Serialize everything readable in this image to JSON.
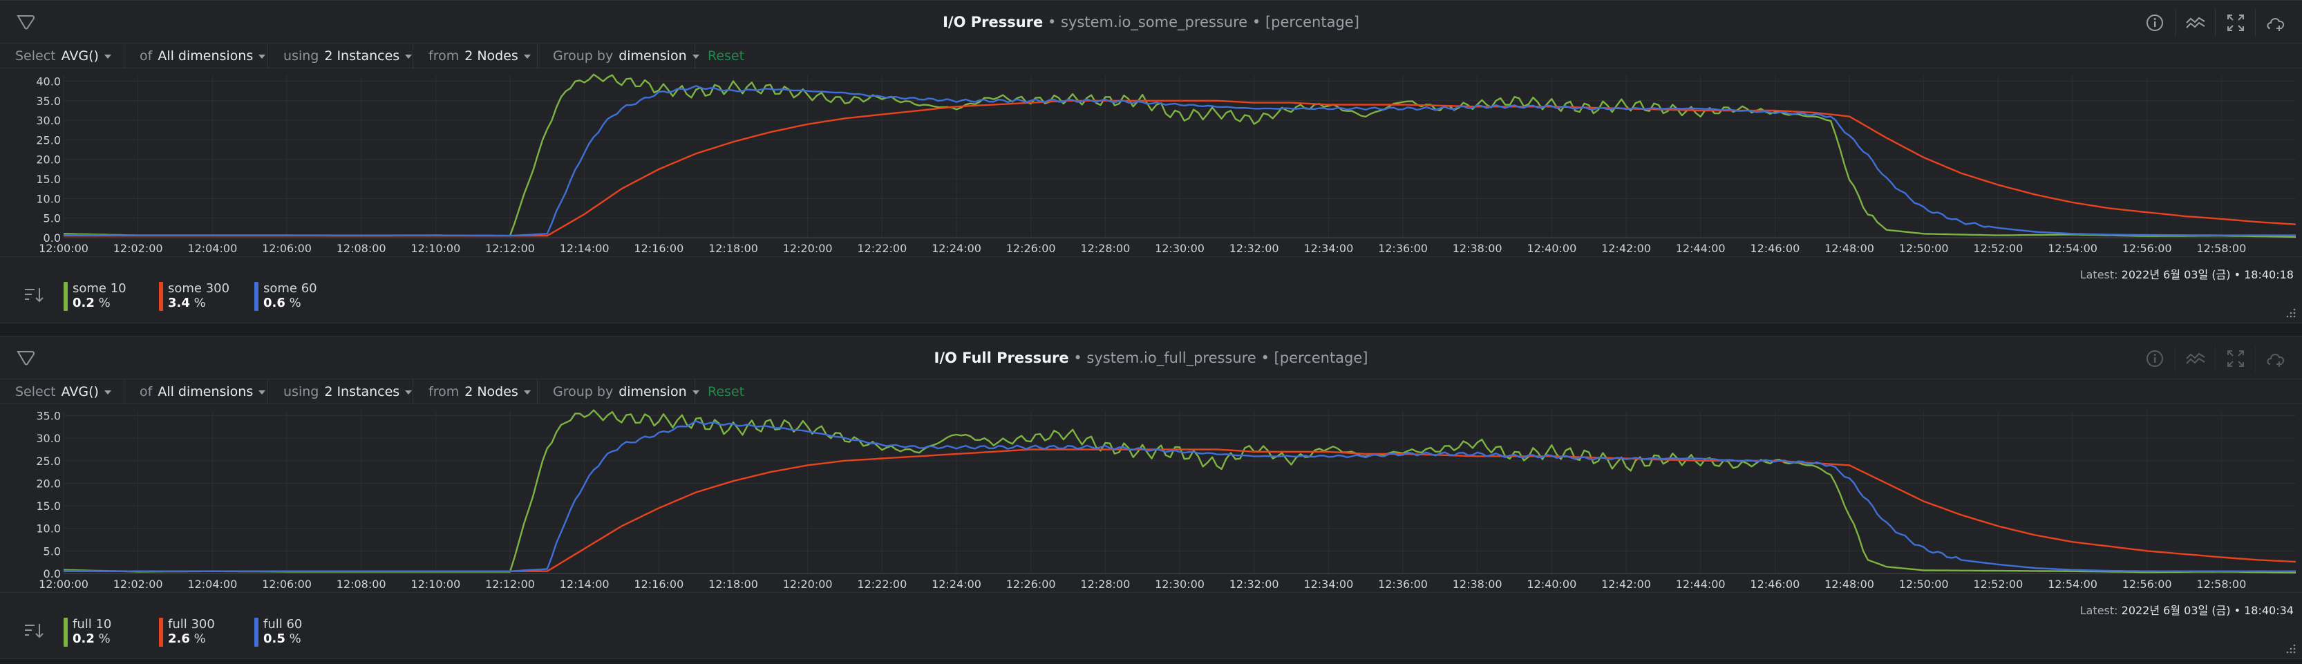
{
  "colors": {
    "green": "#7cb342",
    "red": "#e8431f",
    "blue": "#3f6fd8",
    "grid": "#2d2f33",
    "axis_text": "#d0d3d6"
  },
  "panels": [
    {
      "title": "I/O Pressure",
      "separator": "•",
      "context": "system.io_some_pressure",
      "unit": "[percentage]",
      "filters": {
        "select_label": "Select",
        "select_value": "AVG()",
        "of_label": "of",
        "of_value": "All dimensions",
        "using_label": "using",
        "using_value": "2 Instances",
        "from_label": "from",
        "from_value": "2 Nodes",
        "group_label": "Group by",
        "group_value": "dimension",
        "reset": "Reset"
      },
      "legend": [
        {
          "name": "some 10",
          "value": "0.2",
          "unit": "%",
          "color": "#7cb342"
        },
        {
          "name": "some 300",
          "value": "3.4",
          "unit": "%",
          "color": "#e8431f"
        },
        {
          "name": "some 60",
          "value": "0.6",
          "unit": "%",
          "color": "#3f6fd8"
        }
      ],
      "latest_label": "Latest:",
      "latest_value": "2022년 6월 03일 (금) • 18:40:18"
    },
    {
      "title": "I/O Full Pressure",
      "separator": "•",
      "context": "system.io_full_pressure",
      "unit": "[percentage]",
      "filters": {
        "select_label": "Select",
        "select_value": "AVG()",
        "of_label": "of",
        "of_value": "All dimensions",
        "using_label": "using",
        "using_value": "2 Instances",
        "from_label": "from",
        "from_value": "2 Nodes",
        "group_label": "Group by",
        "group_value": "dimension",
        "reset": "Reset"
      },
      "legend": [
        {
          "name": "full 10",
          "value": "0.2",
          "unit": "%",
          "color": "#7cb342"
        },
        {
          "name": "full 300",
          "value": "2.6",
          "unit": "%",
          "color": "#e8431f"
        },
        {
          "name": "full 60",
          "value": "0.5",
          "unit": "%",
          "color": "#3f6fd8"
        }
      ],
      "latest_label": "Latest:",
      "latest_value": "2022년 6월 03일 (금) • 18:40:34"
    }
  ],
  "chart_data": [
    {
      "type": "line",
      "title": "I/O Pressure",
      "xlabel": "",
      "ylabel": "",
      "x_ticks": [
        "12:00:00",
        "12:02:00",
        "12:04:00",
        "12:06:00",
        "12:08:00",
        "12:10:00",
        "12:12:00",
        "12:14:00",
        "12:16:00",
        "12:18:00",
        "12:20:00",
        "12:22:00",
        "12:24:00",
        "12:26:00",
        "12:28:00",
        "12:30:00",
        "12:32:00",
        "12:34:00",
        "12:36:00",
        "12:38:00",
        "12:40:00",
        "12:42:00",
        "12:44:00",
        "12:46:00",
        "12:48:00",
        "12:50:00",
        "12:52:00",
        "12:54:00",
        "12:56:00",
        "12:58:00"
      ],
      "y_ticks": [
        0,
        5,
        10,
        15,
        20,
        25,
        30,
        35,
        40
      ],
      "xlim_minutes": [
        0,
        60
      ],
      "ylim": [
        0,
        41.5
      ],
      "grid": true,
      "series": [
        {
          "name": "some 10",
          "color": "#7cb342",
          "x_minutes": [
            0,
            2,
            4,
            6,
            8,
            10,
            12,
            13,
            13.5,
            14,
            14.5,
            15,
            15.5,
            16,
            17,
            18,
            19,
            20,
            21,
            22,
            23,
            24,
            25,
            26,
            27,
            28,
            29,
            30,
            31,
            32,
            33,
            34,
            35,
            36,
            37,
            38,
            39,
            40,
            41,
            42,
            43,
            44,
            45,
            46,
            47,
            47.5,
            48,
            48.5,
            49,
            50,
            52,
            54,
            56,
            58,
            60
          ],
          "values": [
            1,
            0.6,
            0.6,
            0.6,
            0.5,
            0.6,
            0.5,
            28,
            38,
            40.5,
            41,
            40,
            39.5,
            38,
            37,
            38.5,
            38,
            36.5,
            35,
            36,
            34,
            33,
            36,
            35,
            35.5,
            35,
            35,
            31,
            32,
            30,
            33,
            34,
            31,
            35,
            33,
            34,
            35,
            34,
            33,
            34,
            33,
            32,
            33,
            32,
            31,
            30,
            15,
            6,
            2,
            1,
            0.6,
            0.8,
            0.4,
            0.5,
            0.2
          ]
        },
        {
          "name": "some 300",
          "color": "#e8431f",
          "x_minutes": [
            0,
            2,
            4,
            6,
            8,
            10,
            12,
            13,
            14,
            15,
            16,
            17,
            18,
            19,
            20,
            21,
            22,
            23,
            24,
            25,
            26,
            27,
            28,
            29,
            30,
            31,
            32,
            33,
            34,
            35,
            36,
            38,
            40,
            42,
            44,
            46,
            47,
            48,
            49,
            50,
            51,
            52,
            53,
            54,
            55,
            56,
            57,
            58,
            59,
            60
          ],
          "values": [
            0.5,
            0.5,
            0.5,
            0.5,
            0.5,
            0.5,
            0.5,
            0.5,
            6,
            12.5,
            17.5,
            21.5,
            24.5,
            27,
            29,
            30.5,
            31.5,
            32.5,
            33.5,
            34,
            34.5,
            35,
            35,
            35,
            35,
            35,
            34.5,
            34.5,
            34,
            34,
            34,
            33.5,
            33.5,
            33,
            32.5,
            32.5,
            32,
            31,
            25.5,
            20.5,
            16.5,
            13.5,
            11,
            9,
            7.5,
            6.5,
            5.5,
            4.8,
            4,
            3.4
          ]
        },
        {
          "name": "some 60",
          "color": "#3f6fd8",
          "x_minutes": [
            0,
            2,
            4,
            6,
            8,
            10,
            12,
            13,
            13.5,
            14,
            14.5,
            15,
            16,
            17,
            18,
            19,
            20,
            21,
            22,
            23,
            24,
            25,
            26,
            27,
            28,
            29,
            30,
            31,
            32,
            33,
            34,
            35,
            36,
            37,
            38,
            39,
            40,
            41,
            42,
            43,
            44,
            45,
            46,
            47,
            47.5,
            48,
            48.5,
            49,
            49.5,
            50,
            51,
            52,
            53,
            54,
            55,
            56,
            58,
            60
          ],
          "values": [
            0.7,
            0.6,
            0.6,
            0.6,
            0.6,
            0.6,
            0.5,
            1,
            12,
            22,
            29,
            33,
            37,
            38.5,
            37.5,
            38,
            37.5,
            37,
            36,
            35.5,
            35,
            35,
            35,
            35,
            35,
            34.5,
            34,
            33.5,
            33,
            33,
            33,
            33,
            33,
            33,
            33.5,
            33.5,
            33.5,
            33,
            33,
            33,
            33,
            32.5,
            32,
            31.5,
            31,
            26,
            21,
            15,
            11,
            7.5,
            4,
            2.5,
            1.5,
            1,
            0.8,
            0.7,
            0.6,
            0.6
          ]
        }
      ]
    },
    {
      "type": "line",
      "title": "I/O Full Pressure",
      "xlabel": "",
      "ylabel": "",
      "x_ticks": [
        "12:00:00",
        "12:02:00",
        "12:04:00",
        "12:06:00",
        "12:08:00",
        "12:10:00",
        "12:12:00",
        "12:14:00",
        "12:16:00",
        "12:18:00",
        "12:20:00",
        "12:22:00",
        "12:24:00",
        "12:26:00",
        "12:28:00",
        "12:30:00",
        "12:32:00",
        "12:34:00",
        "12:36:00",
        "12:38:00",
        "12:40:00",
        "12:42:00",
        "12:44:00",
        "12:46:00",
        "12:48:00",
        "12:50:00",
        "12:52:00",
        "12:54:00",
        "12:56:00",
        "12:58:00"
      ],
      "y_ticks": [
        0,
        5,
        10,
        15,
        20,
        25,
        30,
        35
      ],
      "xlim_minutes": [
        0,
        60
      ],
      "ylim": [
        0,
        36
      ],
      "grid": true,
      "series": [
        {
          "name": "full 10",
          "color": "#7cb342",
          "x_minutes": [
            0,
            2,
            4,
            6,
            8,
            10,
            12,
            13,
            13.5,
            14,
            14.5,
            15,
            16,
            17,
            18,
            19,
            20,
            21,
            22,
            23,
            24,
            25,
            26,
            27,
            28,
            29,
            30,
            31,
            32,
            33,
            34,
            35,
            36,
            37,
            38,
            39,
            40,
            41,
            42,
            43,
            44,
            45,
            46,
            47,
            47.5,
            48,
            48.5,
            49,
            50,
            52,
            54,
            56,
            58,
            60
          ],
          "values": [
            0.8,
            0.4,
            0.5,
            0.4,
            0.4,
            0.4,
            0.4,
            28,
            34,
            35.5,
            35,
            34.5,
            34,
            33.5,
            32,
            33,
            32.5,
            30,
            28,
            27,
            31,
            29,
            30,
            31,
            28,
            27,
            27,
            24,
            28,
            25,
            28,
            26,
            27,
            27.5,
            29,
            26,
            27,
            26,
            24,
            25.5,
            25,
            24,
            25,
            24,
            22,
            13,
            3,
            1.5,
            0.7,
            0.6,
            0.5,
            0.3,
            0.4,
            0.2
          ]
        },
        {
          "name": "full 300",
          "color": "#e8431f",
          "x_minutes": [
            0,
            2,
            4,
            6,
            8,
            10,
            12,
            13,
            14,
            15,
            16,
            17,
            18,
            19,
            20,
            21,
            22,
            23,
            24,
            25,
            26,
            27,
            28,
            29,
            30,
            31,
            32,
            33,
            34,
            35,
            36,
            38,
            40,
            42,
            44,
            46,
            47,
            48,
            49,
            50,
            51,
            52,
            53,
            54,
            55,
            56,
            57,
            58,
            59,
            60
          ],
          "values": [
            0.5,
            0.5,
            0.5,
            0.5,
            0.5,
            0.5,
            0.5,
            0.5,
            5.5,
            10.5,
            14.5,
            18,
            20.5,
            22.5,
            24,
            25,
            25.5,
            26,
            26.5,
            27,
            27.5,
            27.5,
            27.5,
            27.5,
            27.5,
            27.5,
            27,
            27,
            27,
            26.5,
            26.5,
            26,
            26,
            25.5,
            25,
            25,
            24.5,
            24,
            20,
            16,
            13,
            10.5,
            8.5,
            7,
            6,
            5,
            4.3,
            3.6,
            3,
            2.6
          ]
        },
        {
          "name": "full 60",
          "color": "#3f6fd8",
          "x_minutes": [
            0,
            2,
            4,
            6,
            8,
            10,
            12,
            13,
            13.5,
            14,
            14.5,
            15,
            16,
            17,
            18,
            19,
            20,
            21,
            22,
            23,
            24,
            25,
            26,
            27,
            28,
            29,
            30,
            31,
            32,
            33,
            34,
            35,
            36,
            37,
            38,
            39,
            40,
            41,
            42,
            43,
            44,
            45,
            46,
            47,
            47.5,
            48,
            48.5,
            49,
            49.5,
            50,
            51,
            52,
            53,
            54,
            55,
            56,
            58,
            60
          ],
          "values": [
            0.6,
            0.5,
            0.5,
            0.5,
            0.5,
            0.5,
            0.5,
            1,
            12,
            20,
            25.5,
            28.5,
            31,
            33.5,
            33,
            32.5,
            31.5,
            30,
            28.5,
            28,
            28,
            28,
            28,
            28,
            28,
            27.5,
            27,
            26.5,
            26,
            26,
            26,
            26,
            26.5,
            26.5,
            26.5,
            26,
            26,
            25.5,
            25.5,
            25.5,
            25.5,
            25,
            25,
            24.5,
            24,
            21,
            16,
            11,
            8,
            5.5,
            3,
            2,
            1.2,
            0.8,
            0.6,
            0.5,
            0.5,
            0.5
          ]
        }
      ]
    }
  ]
}
